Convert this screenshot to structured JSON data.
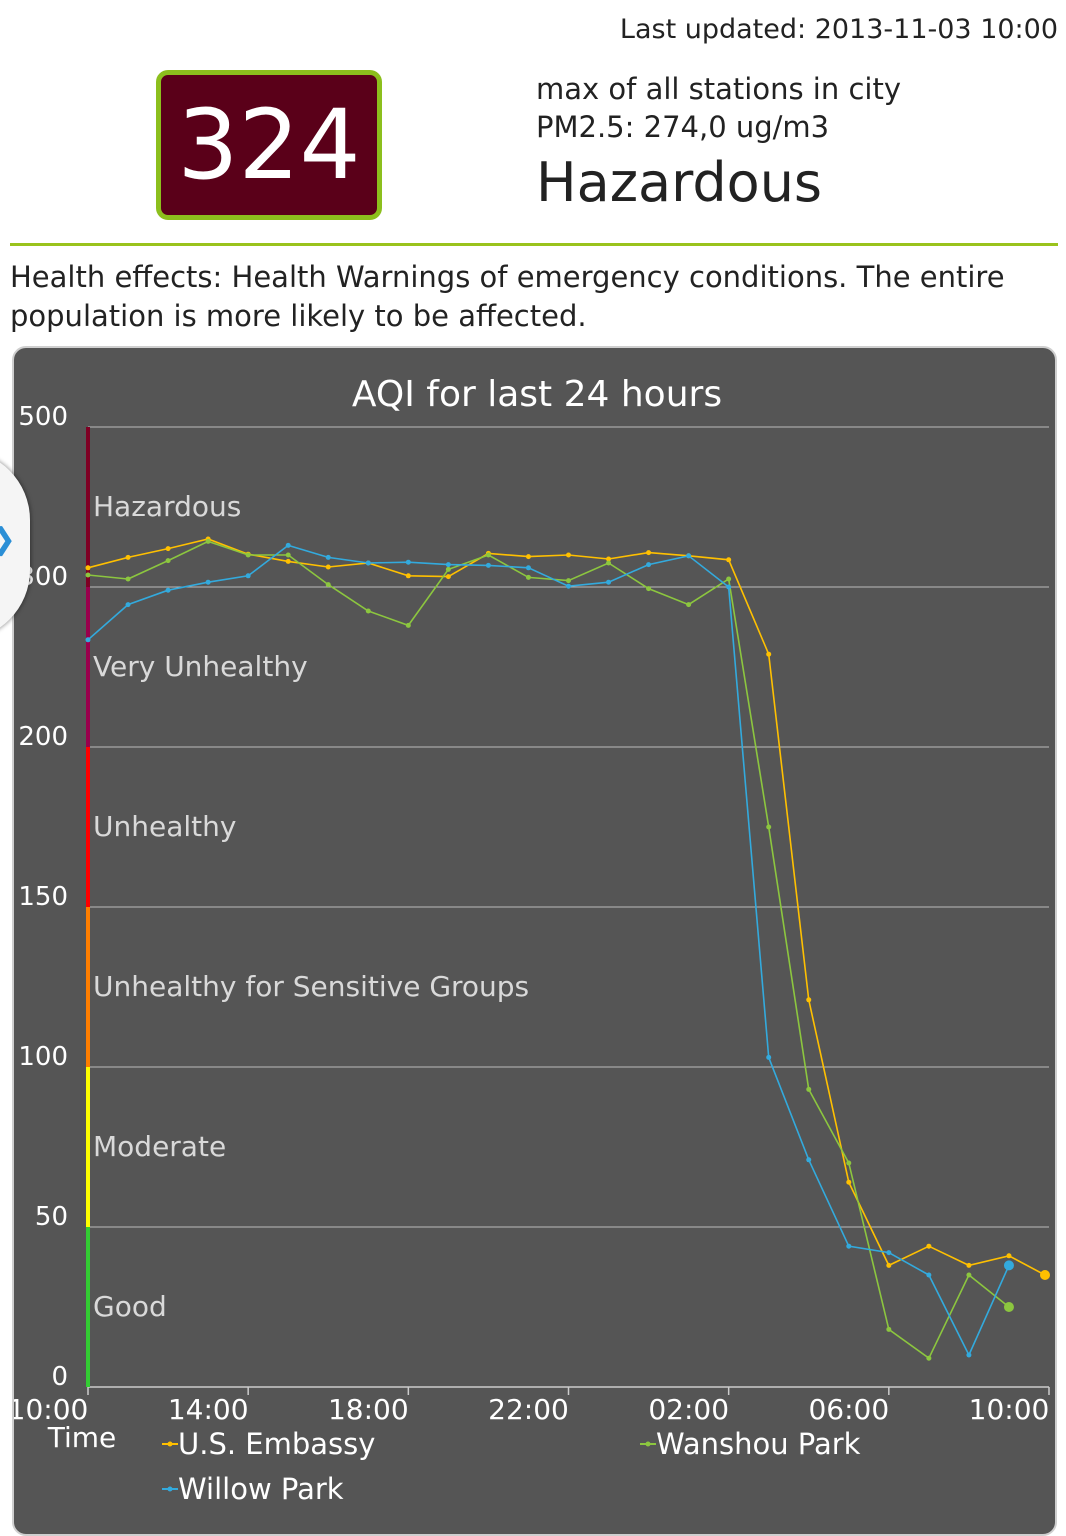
{
  "header": {
    "last_updated": "Last updated: 2013-11-03 10:00",
    "aqi_value": "324",
    "aqi_box_color": "#5a0019",
    "scope": "max of all stations in city",
    "pm25": "PM2.5: 274,0 ug/m3",
    "level": "Hazardous"
  },
  "health_text": "Health effects: Health Warnings of emergency conditions. The entire population is more likely to be affected.",
  "side_tab": {
    "icon": "chevron-right-icon",
    "glyph": "❯"
  },
  "chart_data": {
    "type": "line",
    "title": "AQI for last 24 hours",
    "xlabel": "Time",
    "ylabel": "",
    "y_ticks": [
      "0",
      "50",
      "100",
      "150",
      "200",
      "300",
      "500"
    ],
    "x_tick_labels": [
      "10:00",
      "14:00",
      "18:00",
      "22:00",
      "02:00",
      "06:00",
      "10:00"
    ],
    "x_hours": [
      0,
      24
    ],
    "bands": [
      {
        "name": "Good",
        "color": "#33cc33",
        "from": 0,
        "to": 50
      },
      {
        "name": "Moderate",
        "color": "#ffff00",
        "from": 50,
        "to": 100
      },
      {
        "name": "Unhealthy for Sensitive Groups",
        "color": "#ff7e00",
        "from": 100,
        "to": 150
      },
      {
        "name": "Unhealthy",
        "color": "#ff0000",
        "from": 150,
        "to": 200
      },
      {
        "name": "Very Unhealthy",
        "color": "#99004c",
        "from": 200,
        "to": 300
      },
      {
        "name": "Hazardous",
        "color": "#7e0023",
        "from": 300,
        "to": 500
      }
    ],
    "series": [
      {
        "name": "U.S. Embassy",
        "color": "#ffc000",
        "x": [
          0,
          1,
          2,
          3,
          4,
          5,
          6,
          7,
          8,
          9,
          10,
          11,
          12,
          13,
          14,
          15,
          16,
          17,
          18,
          19,
          20,
          21,
          22,
          23,
          23.9
        ],
        "y": [
          324,
          337,
          348,
          360,
          341,
          332,
          325,
          330,
          314,
          313,
          342,
          338,
          340,
          335,
          343,
          339,
          334,
          258,
          121,
          64,
          38,
          44,
          38,
          41,
          35
        ]
      },
      {
        "name": "Wanshou Park",
        "color": "#8cc63f",
        "x": [
          0,
          1,
          2,
          3,
          4,
          5,
          6,
          7,
          8,
          9,
          10,
          11,
          12,
          13,
          14,
          15,
          16,
          17,
          18,
          19,
          20,
          21,
          22,
          23
        ],
        "y": [
          315,
          310,
          333,
          357,
          340,
          340,
          303,
          285,
          276,
          322,
          340,
          312,
          308,
          330,
          299,
          289,
          310,
          175,
          93,
          70,
          18,
          9,
          35,
          25
        ]
      },
      {
        "name": "Willow Park",
        "color": "#33aadd",
        "x": [
          0,
          1,
          2,
          3,
          4,
          5,
          6,
          7,
          8,
          9,
          10,
          11,
          12,
          13,
          14,
          15,
          16,
          17,
          18,
          19,
          20,
          21,
          22,
          23
        ],
        "y": [
          267,
          289,
          298,
          306,
          314,
          352,
          337,
          330,
          331,
          328,
          327,
          324,
          301,
          306,
          328,
          339,
          300,
          103,
          71,
          44,
          42,
          35,
          10,
          38
        ]
      }
    ]
  }
}
